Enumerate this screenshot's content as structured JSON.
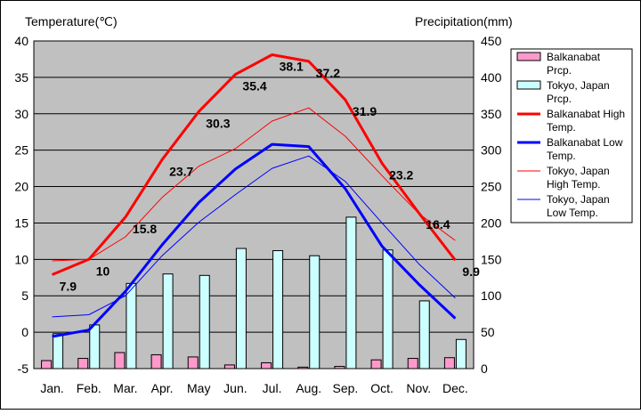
{
  "chart_data": {
    "type": "bar+line",
    "left_axis_title": "Temperature(℃)",
    "right_axis_title": "Precipitation(mm)",
    "left_ylim": [
      -5,
      40
    ],
    "left_ticks": [
      40,
      35,
      30,
      25,
      20,
      15,
      10,
      5,
      0,
      -5
    ],
    "right_ylim": [
      0,
      450
    ],
    "right_ticks": [
      450,
      400,
      350,
      300,
      250,
      200,
      150,
      100,
      50,
      0
    ],
    "categories": [
      "Jan.",
      "Feb.",
      "Mar.",
      "Apr.",
      "May",
      "Jun.",
      "Jul.",
      "Aug.",
      "Sep.",
      "Oct.",
      "Nov.",
      "Dec."
    ],
    "grid": true,
    "legend_position": "right",
    "bars": [
      {
        "name": "Balkanabat Prcp.",
        "color": "#ff99cc",
        "values": [
          11,
          14,
          22,
          19,
          16,
          5,
          8,
          2,
          3,
          12,
          14,
          15
        ]
      },
      {
        "name": "Tokyo, Japan Prcp.",
        "color": "#ccffff",
        "values": [
          48,
          60,
          117,
          130,
          128,
          165,
          162,
          155,
          208,
          163,
          93,
          40
        ]
      }
    ],
    "lines": [
      {
        "name": "Balkanabat High Temp.",
        "color": "#ff0000",
        "width": 3,
        "values": [
          7.9,
          10,
          15.8,
          23.7,
          30.3,
          35.4,
          38.1,
          37.2,
          31.9,
          23.2,
          16.4,
          9.9
        ]
      },
      {
        "name": "Balkanabat Low Temp.",
        "color": "#0000ff",
        "width": 3,
        "values": [
          -0.6,
          0.3,
          5.6,
          12,
          17.8,
          22.4,
          25.8,
          25.5,
          19.7,
          11.8,
          6.6,
          1.9
        ]
      },
      {
        "name": "Tokyo, Japan High Temp.",
        "color": "#ff0000",
        "width": 1,
        "values": [
          9.8,
          10,
          13.1,
          18.5,
          22.8,
          25.2,
          29,
          30.8,
          26.9,
          21.5,
          16.3,
          12.6
        ]
      },
      {
        "name": "Tokyo, Japan Low Temp.",
        "color": "#0000ff",
        "width": 1,
        "values": [
          2.1,
          2.4,
          5,
          10.5,
          15.1,
          18.9,
          22.5,
          24.2,
          20.7,
          15,
          9.4,
          4.7
        ]
      }
    ],
    "high_temp_labels": [
      "7.9",
      "10",
      "15.8",
      "23.7",
      "30.3",
      "35.4",
      "38.1",
      "37.2",
      "31.9",
      "23.2",
      "16.4",
      "9.9"
    ]
  }
}
